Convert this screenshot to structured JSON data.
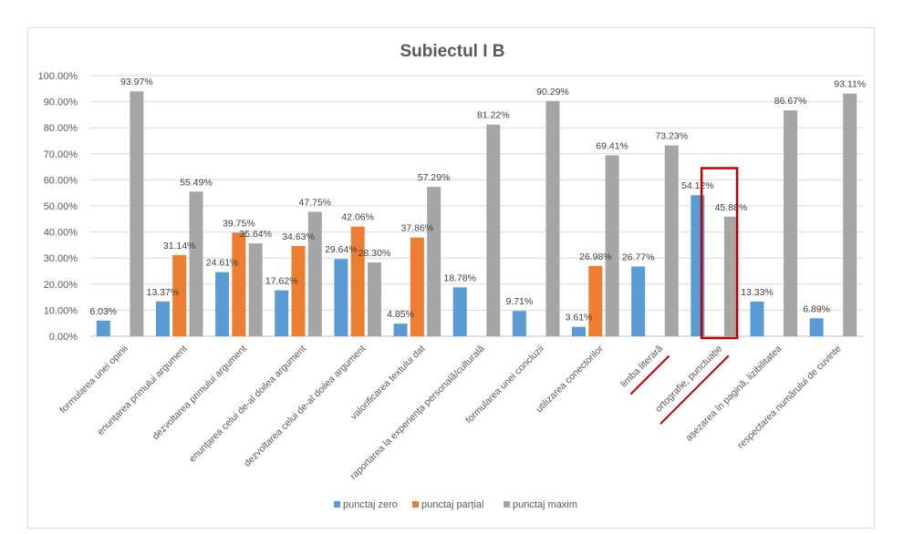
{
  "chart_data": {
    "type": "bar",
    "title": "Subiectul I B",
    "categories": [
      "formularea unei opinii",
      "enunțarea primului argument",
      "dezvoltarea primului argument",
      "enunțarea celui de-al doilea argument",
      "dezvoltarea celui de-al doilea argument",
      "valorificarea textului dat",
      "raportarea la experiența personală/culturală",
      "formularea unei concluzii",
      "utilizarea conectorilor",
      "limba literară",
      "ortografie, punctuație",
      "așezarea în pagină, lizibilitatea",
      "respectarea numărului de cuvinte"
    ],
    "series": [
      {
        "name": "punctaj zero",
        "color": "#5b9bd5",
        "values": [
          6.03,
          13.37,
          24.61,
          17.62,
          29.64,
          4.85,
          18.78,
          9.71,
          3.61,
          26.77,
          54.12,
          13.33,
          6.89
        ],
        "labels": [
          "6.03%",
          "13.37%",
          "24.61%",
          "17.62%",
          "29.64%",
          "4.85%",
          "18.78%",
          "9.71%",
          "3.61%",
          "26.77%",
          "54.12%",
          "13.33%",
          "6.89%"
        ]
      },
      {
        "name": "punctaj parțial",
        "color": "#ed7d31",
        "values": [
          null,
          31.14,
          39.75,
          34.63,
          42.06,
          37.86,
          null,
          null,
          26.98,
          null,
          null,
          null,
          null
        ],
        "labels": [
          null,
          "31.14%",
          "39.75%",
          "34.63%",
          "42.06%",
          "37.86%",
          null,
          null,
          "26.98%",
          null,
          null,
          null,
          null
        ]
      },
      {
        "name": "punctaj maxim",
        "color": "#a5a5a5",
        "values": [
          93.97,
          55.49,
          35.64,
          47.75,
          28.3,
          57.29,
          81.22,
          90.29,
          69.41,
          73.23,
          45.88,
          86.67,
          93.11
        ],
        "labels": [
          "93.97%",
          "55.49%",
          "35.64%",
          "47.75%",
          "28.30%",
          "57.29%",
          "81.22%",
          "90.29%",
          "69.41%",
          "73.23%",
          "45.88%",
          "86.67%",
          "93.11%"
        ]
      }
    ],
    "y_ticks": [
      "0.00%",
      "10.00%",
      "20.00%",
      "30.00%",
      "40.00%",
      "50.00%",
      "60.00%",
      "70.00%",
      "80.00%",
      "90.00%",
      "100.00%"
    ],
    "ylim": [
      0,
      100
    ],
    "grid": true,
    "legend_position": "bottom",
    "annotations": {
      "highlight_box_category": "ortografie, punctuație",
      "underlined_categories": [
        "limba literară",
        "ortografie, punctuație"
      ],
      "annotation_color": "#c00000"
    }
  }
}
